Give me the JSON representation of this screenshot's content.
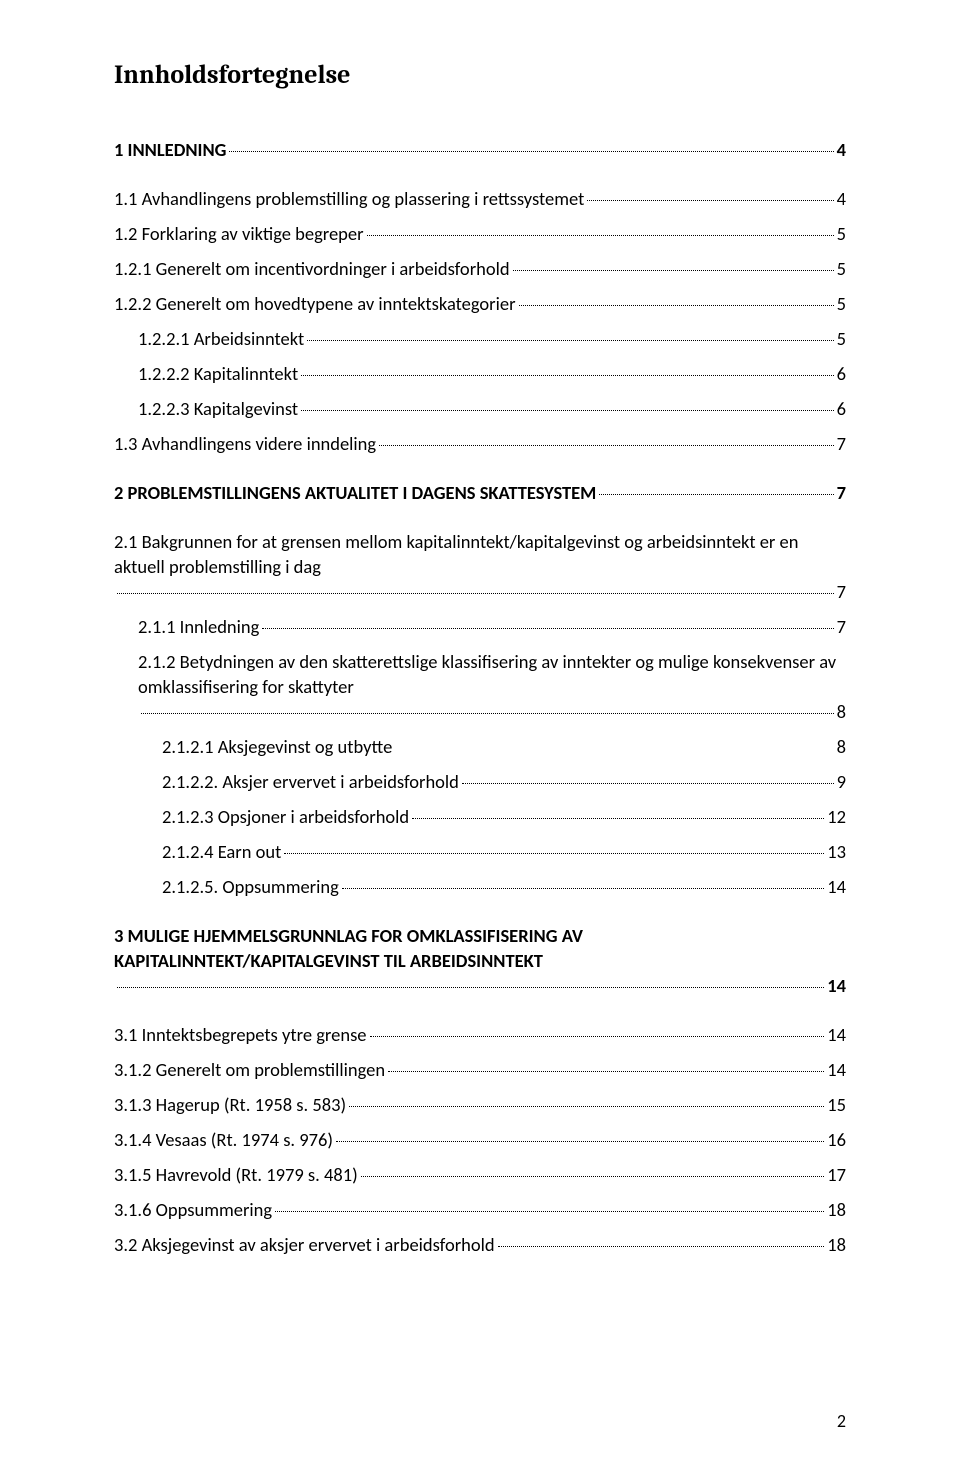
{
  "title_text": "Innholdsfortegnelse",
  "page_number": "2",
  "colors": {
    "text": "#000000",
    "background": "#ffffff",
    "dots": "#000000"
  },
  "typography": {
    "title_fontsize": 26,
    "title_family": "Cambria",
    "entry_fontsize": 18.5,
    "entry_family": "Calibri",
    "lvl0_weight": "bold"
  },
  "entries": [
    {
      "level": 0,
      "label": "1 INNLEDNING",
      "page": "4"
    },
    {
      "level": 1,
      "label": "1.1 Avhandlingens problemstilling og plassering i rettssystemet",
      "page": "4"
    },
    {
      "level": 1,
      "label": "1.2 Forklaring av viktige begreper",
      "page": "5"
    },
    {
      "level": 1,
      "label": "1.2.1 Generelt om incentivordninger i arbeidsforhold",
      "page": "5"
    },
    {
      "level": 1,
      "label": "1.2.2 Generelt om hovedtypene av inntektskategorier",
      "page": "5"
    },
    {
      "level": 2,
      "label": "1.2.2.1 Arbeidsinntekt",
      "page": "5"
    },
    {
      "level": 2,
      "label": "1.2.2.2 Kapitalinntekt",
      "page": "6"
    },
    {
      "level": 2,
      "label": "1.2.2.3 Kapitalgevinst",
      "page": "6"
    },
    {
      "level": 1,
      "label": "1.3 Avhandlingens videre inndeling",
      "page": "7"
    },
    {
      "level": 0,
      "label": "2 PROBLEMSTILLINGENS AKTUALITET I DAGENS SKATTESYSTEM",
      "page": "7"
    },
    {
      "level": 1,
      "label": "2.1 Bakgrunnen for at grensen mellom kapitalinntekt/kapitalgevinst og arbeidsinntekt er en aktuell problemstilling i dag",
      "page": "7",
      "multiline": true
    },
    {
      "level": 2,
      "label": "2.1.1 Innledning",
      "page": "7"
    },
    {
      "level": 2,
      "label": "2.1.2 Betydningen av den skatterettslige klassifisering av inntekter og mulige konsekvenser av omklassifisering for skattyter",
      "page": "8",
      "multiline": true
    },
    {
      "level": 3,
      "label": "2.1.2.1 Aksjegevinst og utbytte",
      "page": "8",
      "nondotted": true
    },
    {
      "level": 3,
      "label": "2.1.2.2. Aksjer ervervet i arbeidsforhold",
      "page": "9"
    },
    {
      "level": 3,
      "label": "2.1.2.3 Opsjoner i arbeidsforhold",
      "page": "12"
    },
    {
      "level": 3,
      "label": "2.1.2.4 Earn out",
      "page": "13"
    },
    {
      "level": 3,
      "label": "2.1.2.5. Oppsummering",
      "page": "14"
    },
    {
      "level": 0,
      "label": "3 MULIGE HJEMMELSGRUNNLAG FOR OMKLASSIFISERING AV KAPITALINNTEKT/KAPITALGEVINST TIL ARBEIDSINNTEKT",
      "page": "14",
      "multiline": true
    },
    {
      "level": 1,
      "label": "3.1 Inntektsbegrepets ytre grense",
      "page": "14"
    },
    {
      "level": 1,
      "label": "3.1.2 Generelt om problemstillingen",
      "page": "14"
    },
    {
      "level": 1,
      "label": "3.1.3 Hagerup (Rt. 1958 s. 583)",
      "page": "15"
    },
    {
      "level": 1,
      "label": "3.1.4 Vesaas (Rt. 1974 s. 976)",
      "page": "16"
    },
    {
      "level": 1,
      "label": "3.1.5 Havrevold (Rt. 1979 s. 481)",
      "page": "17"
    },
    {
      "level": 1,
      "label": "3.1.6 Oppsummering",
      "page": "18"
    },
    {
      "level": 1,
      "label": "3.2 Aksjegevinst av aksjer ervervet i arbeidsforhold",
      "page": "18"
    }
  ]
}
